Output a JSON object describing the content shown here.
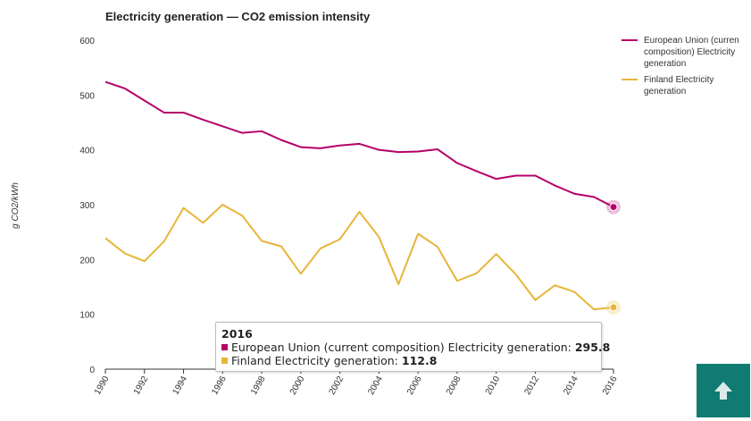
{
  "chart_data": {
    "type": "line",
    "title": "Electricity generation — CO2 emission intensity",
    "ylabel": "g CO2/kWh",
    "xlabel": "",
    "ylim": [
      0,
      600
    ],
    "yticks": [
      "0",
      "100",
      "200",
      "300",
      "400",
      "500",
      "600"
    ],
    "x": [
      1990,
      1991,
      1992,
      1993,
      1994,
      1995,
      1996,
      1997,
      1998,
      1999,
      2000,
      2001,
      2002,
      2003,
      2004,
      2005,
      2006,
      2007,
      2008,
      2009,
      2010,
      2011,
      2012,
      2013,
      2014,
      2015,
      2016
    ],
    "xticks": [
      "1990",
      "1992",
      "1994",
      "1996",
      "1998",
      "2000",
      "2002",
      "2004",
      "2006",
      "2008",
      "2010",
      "2012",
      "2014",
      "2016"
    ],
    "series": [
      {
        "name": "European Union (current composition) Electricity generation",
        "color": "#b5006a",
        "values": [
          524,
          512,
          490,
          468,
          468,
          455,
          443,
          431,
          434,
          418,
          405,
          403,
          408,
          411,
          400,
          396,
          397,
          401,
          376,
          361,
          347,
          353,
          353,
          335,
          320,
          314,
          295.8
        ]
      },
      {
        "name": "Finland Electricity generation",
        "color": "#e7b53a",
        "values": [
          239,
          211,
          197,
          233,
          294,
          267,
          300,
          280,
          234,
          224,
          174,
          220,
          237,
          287,
          241,
          155,
          247,
          223,
          161,
          175,
          210,
          173,
          126,
          153,
          141,
          109,
          112.8
        ]
      }
    ],
    "legend": {
      "position": "right",
      "items": [
        [
          "European Union (curren",
          "composition) Electricity",
          "generation"
        ],
        [
          "Finland Electricity",
          "generation"
        ]
      ]
    },
    "grid": false,
    "highlight_index": 26
  },
  "tooltip": {
    "title": "2016",
    "rows": [
      {
        "label": "European Union (current composition) Electricity generation:",
        "value": "295.8",
        "color": "#b5006a"
      },
      {
        "label": "Finland Electricity generation:",
        "value": "112.8",
        "color": "#e7b53a"
      }
    ]
  },
  "scroll_top": {
    "icon": "arrow-up-icon",
    "color": "#0f7b72"
  }
}
